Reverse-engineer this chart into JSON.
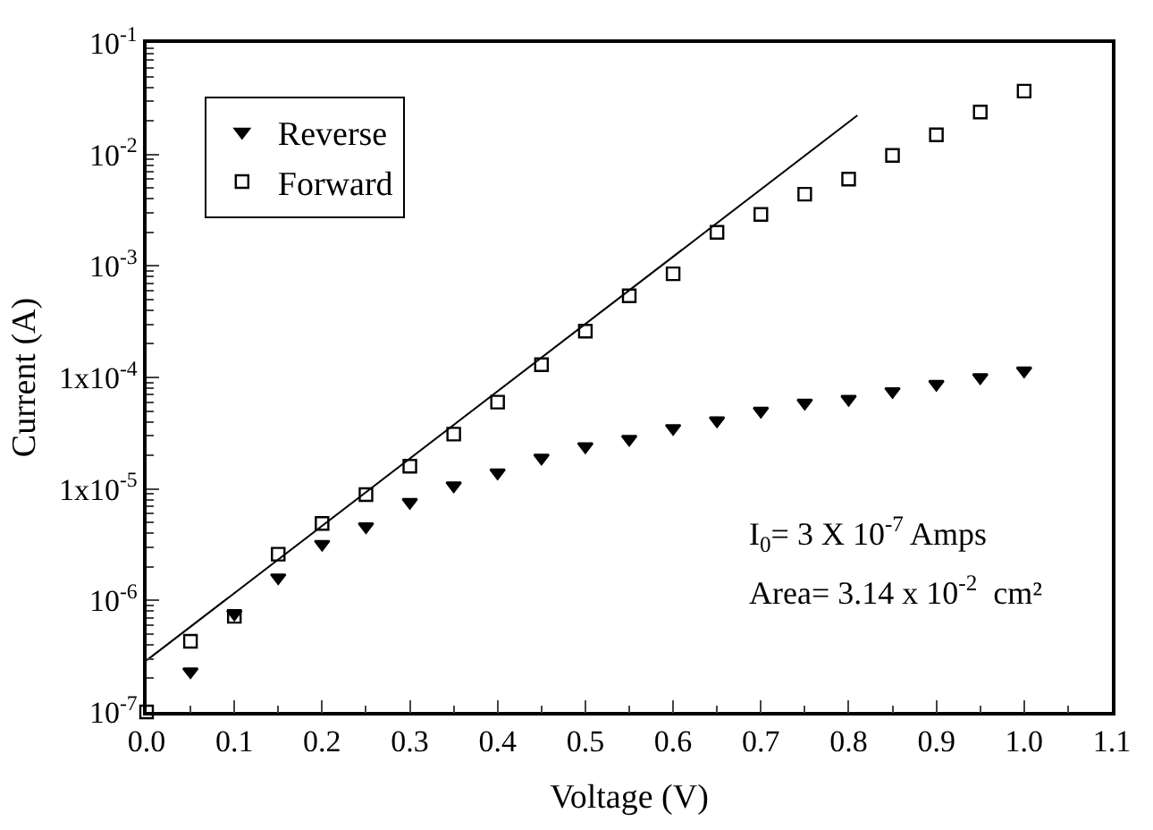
{
  "chart_data": {
    "type": "scatter",
    "xlabel": "Voltage (V)",
    "ylabel": "Current (A)",
    "log": "y",
    "x": [
      0.0,
      0.05,
      0.1,
      0.15,
      0.2,
      0.25,
      0.3,
      0.35,
      0.4,
      0.45,
      0.5,
      0.55,
      0.6,
      0.65,
      0.7,
      0.75,
      0.8,
      0.85,
      0.9,
      0.95,
      1.0
    ],
    "series": [
      {
        "name": "Reverse",
        "color": "#000000",
        "marker": "triangle",
        "values": [
          null,
          2.3e-07,
          7.6e-07,
          1.6e-06,
          3.2e-06,
          4.6e-06,
          7.6e-06,
          1.07e-05,
          1.4e-05,
          1.9e-05,
          2.4e-05,
          2.8e-05,
          3.5e-05,
          4.1e-05,
          5e-05,
          5.9e-05,
          6.4e-05,
          7.5e-05,
          8.7e-05,
          0.0001,
          0.000115
        ]
      },
      {
        "name": "Forward",
        "color": "#000000",
        "marker": "square",
        "values": [
          1e-07,
          4.3e-07,
          7.2e-07,
          2.6e-06,
          4.9e-06,
          8.9e-06,
          1.6e-05,
          3.1e-05,
          6e-05,
          0.00013,
          0.00026,
          0.00054,
          0.00085,
          0.002,
          0.0029,
          0.0044,
          0.006,
          0.0098,
          0.015,
          0.024,
          0.037
        ]
      },
      {
        "type": "line",
        "color": "#000000",
        "line_style": "solid",
        "x": [
          0.0,
          0.81
        ],
        "values": [
          2.9e-07,
          0.0224
        ]
      }
    ],
    "xlim": [
      0.0,
      1.1
    ],
    "xticks": [
      {
        "value": 0.0,
        "label": "0.0"
      },
      0.1,
      0.2,
      0.3,
      0.4,
      0.5,
      0.6,
      0.7,
      0.8,
      0.9,
      {
        "value": 1.0,
        "label": "1.0"
      },
      1.1
    ],
    "ylim": [
      1e-07,
      0.1
    ],
    "yticks": [
      {
        "value": 1e-07,
        "label": "10$^{-7}$"
      },
      {
        "value": 1e-06,
        "label": "10$^{-6}$"
      },
      {
        "value": 1e-05,
        "label": "1x10$^{-5}$"
      },
      {
        "value": 0.0001,
        "label": "1x10$^{-4}$"
      },
      {
        "value": 0.001,
        "label": "10$^{-3}$"
      },
      {
        "value": 0.01,
        "label": "10$^{-2}$"
      },
      {
        "value": 0.1,
        "label": "10$^{-1}$"
      }
    ],
    "legend": "top left",
    "annotations": [
      "I$_{0}$= 3 X 10$^{-7}$ Amps",
      "Area= 3.14 x 10$^{-2}$  cm²"
    ]
  }
}
